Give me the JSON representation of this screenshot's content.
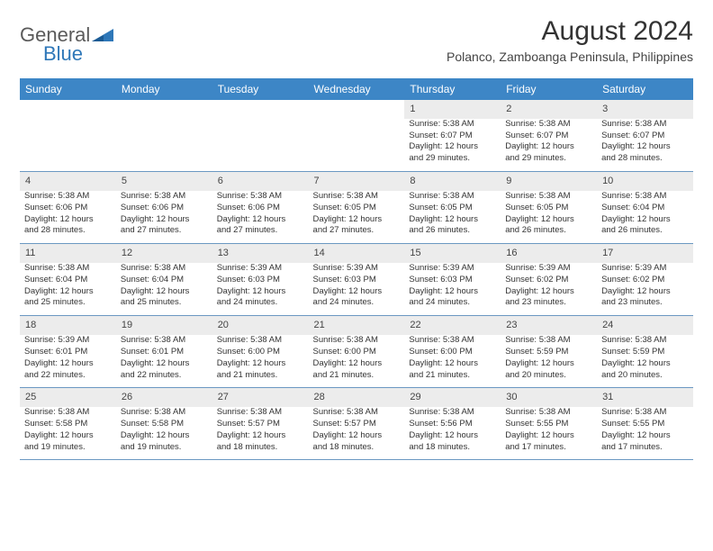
{
  "logo": {
    "word1": "General",
    "word2": "Blue"
  },
  "title": "August 2024",
  "location": "Polanco, Zamboanga Peninsula, Philippines",
  "colors": {
    "header_bg": "#3d86c6",
    "header_text": "#ffffff",
    "daynum_bg": "#ececec",
    "row_border": "#6b98c2",
    "logo_gray": "#5a5a5a",
    "logo_blue": "#2e77b8"
  },
  "day_headers": [
    "Sunday",
    "Monday",
    "Tuesday",
    "Wednesday",
    "Thursday",
    "Friday",
    "Saturday"
  ],
  "weeks": [
    {
      "nums": [
        "",
        "",
        "",
        "",
        "1",
        "2",
        "3"
      ],
      "cells": [
        null,
        null,
        null,
        null,
        {
          "sunrise": "Sunrise: 5:38 AM",
          "sunset": "Sunset: 6:07 PM",
          "d1": "Daylight: 12 hours",
          "d2": "and 29 minutes."
        },
        {
          "sunrise": "Sunrise: 5:38 AM",
          "sunset": "Sunset: 6:07 PM",
          "d1": "Daylight: 12 hours",
          "d2": "and 29 minutes."
        },
        {
          "sunrise": "Sunrise: 5:38 AM",
          "sunset": "Sunset: 6:07 PM",
          "d1": "Daylight: 12 hours",
          "d2": "and 28 minutes."
        }
      ]
    },
    {
      "nums": [
        "4",
        "5",
        "6",
        "7",
        "8",
        "9",
        "10"
      ],
      "cells": [
        {
          "sunrise": "Sunrise: 5:38 AM",
          "sunset": "Sunset: 6:06 PM",
          "d1": "Daylight: 12 hours",
          "d2": "and 28 minutes."
        },
        {
          "sunrise": "Sunrise: 5:38 AM",
          "sunset": "Sunset: 6:06 PM",
          "d1": "Daylight: 12 hours",
          "d2": "and 27 minutes."
        },
        {
          "sunrise": "Sunrise: 5:38 AM",
          "sunset": "Sunset: 6:06 PM",
          "d1": "Daylight: 12 hours",
          "d2": "and 27 minutes."
        },
        {
          "sunrise": "Sunrise: 5:38 AM",
          "sunset": "Sunset: 6:05 PM",
          "d1": "Daylight: 12 hours",
          "d2": "and 27 minutes."
        },
        {
          "sunrise": "Sunrise: 5:38 AM",
          "sunset": "Sunset: 6:05 PM",
          "d1": "Daylight: 12 hours",
          "d2": "and 26 minutes."
        },
        {
          "sunrise": "Sunrise: 5:38 AM",
          "sunset": "Sunset: 6:05 PM",
          "d1": "Daylight: 12 hours",
          "d2": "and 26 minutes."
        },
        {
          "sunrise": "Sunrise: 5:38 AM",
          "sunset": "Sunset: 6:04 PM",
          "d1": "Daylight: 12 hours",
          "d2": "and 26 minutes."
        }
      ]
    },
    {
      "nums": [
        "11",
        "12",
        "13",
        "14",
        "15",
        "16",
        "17"
      ],
      "cells": [
        {
          "sunrise": "Sunrise: 5:38 AM",
          "sunset": "Sunset: 6:04 PM",
          "d1": "Daylight: 12 hours",
          "d2": "and 25 minutes."
        },
        {
          "sunrise": "Sunrise: 5:38 AM",
          "sunset": "Sunset: 6:04 PM",
          "d1": "Daylight: 12 hours",
          "d2": "and 25 minutes."
        },
        {
          "sunrise": "Sunrise: 5:39 AM",
          "sunset": "Sunset: 6:03 PM",
          "d1": "Daylight: 12 hours",
          "d2": "and 24 minutes."
        },
        {
          "sunrise": "Sunrise: 5:39 AM",
          "sunset": "Sunset: 6:03 PM",
          "d1": "Daylight: 12 hours",
          "d2": "and 24 minutes."
        },
        {
          "sunrise": "Sunrise: 5:39 AM",
          "sunset": "Sunset: 6:03 PM",
          "d1": "Daylight: 12 hours",
          "d2": "and 24 minutes."
        },
        {
          "sunrise": "Sunrise: 5:39 AM",
          "sunset": "Sunset: 6:02 PM",
          "d1": "Daylight: 12 hours",
          "d2": "and 23 minutes."
        },
        {
          "sunrise": "Sunrise: 5:39 AM",
          "sunset": "Sunset: 6:02 PM",
          "d1": "Daylight: 12 hours",
          "d2": "and 23 minutes."
        }
      ]
    },
    {
      "nums": [
        "18",
        "19",
        "20",
        "21",
        "22",
        "23",
        "24"
      ],
      "cells": [
        {
          "sunrise": "Sunrise: 5:39 AM",
          "sunset": "Sunset: 6:01 PM",
          "d1": "Daylight: 12 hours",
          "d2": "and 22 minutes."
        },
        {
          "sunrise": "Sunrise: 5:38 AM",
          "sunset": "Sunset: 6:01 PM",
          "d1": "Daylight: 12 hours",
          "d2": "and 22 minutes."
        },
        {
          "sunrise": "Sunrise: 5:38 AM",
          "sunset": "Sunset: 6:00 PM",
          "d1": "Daylight: 12 hours",
          "d2": "and 21 minutes."
        },
        {
          "sunrise": "Sunrise: 5:38 AM",
          "sunset": "Sunset: 6:00 PM",
          "d1": "Daylight: 12 hours",
          "d2": "and 21 minutes."
        },
        {
          "sunrise": "Sunrise: 5:38 AM",
          "sunset": "Sunset: 6:00 PM",
          "d1": "Daylight: 12 hours",
          "d2": "and 21 minutes."
        },
        {
          "sunrise": "Sunrise: 5:38 AM",
          "sunset": "Sunset: 5:59 PM",
          "d1": "Daylight: 12 hours",
          "d2": "and 20 minutes."
        },
        {
          "sunrise": "Sunrise: 5:38 AM",
          "sunset": "Sunset: 5:59 PM",
          "d1": "Daylight: 12 hours",
          "d2": "and 20 minutes."
        }
      ]
    },
    {
      "nums": [
        "25",
        "26",
        "27",
        "28",
        "29",
        "30",
        "31"
      ],
      "cells": [
        {
          "sunrise": "Sunrise: 5:38 AM",
          "sunset": "Sunset: 5:58 PM",
          "d1": "Daylight: 12 hours",
          "d2": "and 19 minutes."
        },
        {
          "sunrise": "Sunrise: 5:38 AM",
          "sunset": "Sunset: 5:58 PM",
          "d1": "Daylight: 12 hours",
          "d2": "and 19 minutes."
        },
        {
          "sunrise": "Sunrise: 5:38 AM",
          "sunset": "Sunset: 5:57 PM",
          "d1": "Daylight: 12 hours",
          "d2": "and 18 minutes."
        },
        {
          "sunrise": "Sunrise: 5:38 AM",
          "sunset": "Sunset: 5:57 PM",
          "d1": "Daylight: 12 hours",
          "d2": "and 18 minutes."
        },
        {
          "sunrise": "Sunrise: 5:38 AM",
          "sunset": "Sunset: 5:56 PM",
          "d1": "Daylight: 12 hours",
          "d2": "and 18 minutes."
        },
        {
          "sunrise": "Sunrise: 5:38 AM",
          "sunset": "Sunset: 5:55 PM",
          "d1": "Daylight: 12 hours",
          "d2": "and 17 minutes."
        },
        {
          "sunrise": "Sunrise: 5:38 AM",
          "sunset": "Sunset: 5:55 PM",
          "d1": "Daylight: 12 hours",
          "d2": "and 17 minutes."
        }
      ]
    }
  ]
}
